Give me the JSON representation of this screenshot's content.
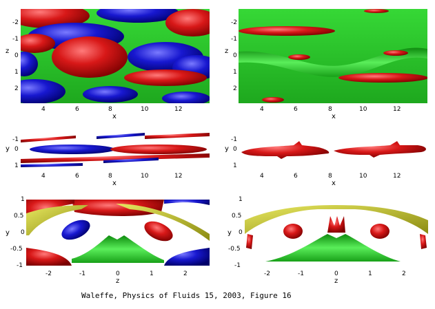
{
  "figure": {
    "caption": "Waleffe, Physics of Fluids 15, 2003, Figure 16",
    "colors": {
      "red": "#d21a1a",
      "blue": "#1a1ac8",
      "green": "#22c022",
      "yellow": "#c8c820"
    }
  },
  "panels": {
    "top_left": {
      "ylabel": "z",
      "xlabel": "x",
      "yticks": [
        "-2",
        "-1",
        "0",
        "1",
        "2"
      ],
      "xticks": [
        "4",
        "6",
        "8",
        "10",
        "12"
      ]
    },
    "top_right": {
      "ylabel": "z",
      "xlabel": "x",
      "yticks": [
        "-2",
        "-1",
        "0",
        "1",
        "2"
      ],
      "xticks": [
        "4",
        "6",
        "8",
        "10",
        "12"
      ]
    },
    "mid_left": {
      "ylabel": "y",
      "xlabel": "x",
      "yticks": [
        "-1",
        "0",
        "1"
      ],
      "xticks": [
        "4",
        "6",
        "8",
        "10",
        "12"
      ]
    },
    "mid_right": {
      "ylabel": "y",
      "xlabel": "x",
      "yticks": [
        "-1",
        "0",
        "1"
      ],
      "xticks": [
        "4",
        "6",
        "8",
        "10",
        "12"
      ]
    },
    "bottom_left": {
      "ylabel": "y",
      "xlabel": "z",
      "yticks": [
        "1",
        "0.5",
        "0",
        "-0.5",
        "-1"
      ],
      "xticks": [
        "-2",
        "-1",
        "0",
        "1",
        "2"
      ]
    },
    "bottom_right": {
      "ylabel": "y",
      "xlabel": "z",
      "yticks": [
        "1",
        "0.5",
        "0",
        "-0.5",
        "-1"
      ],
      "xticks": [
        "-2",
        "-1",
        "0",
        "1",
        "2"
      ]
    }
  }
}
